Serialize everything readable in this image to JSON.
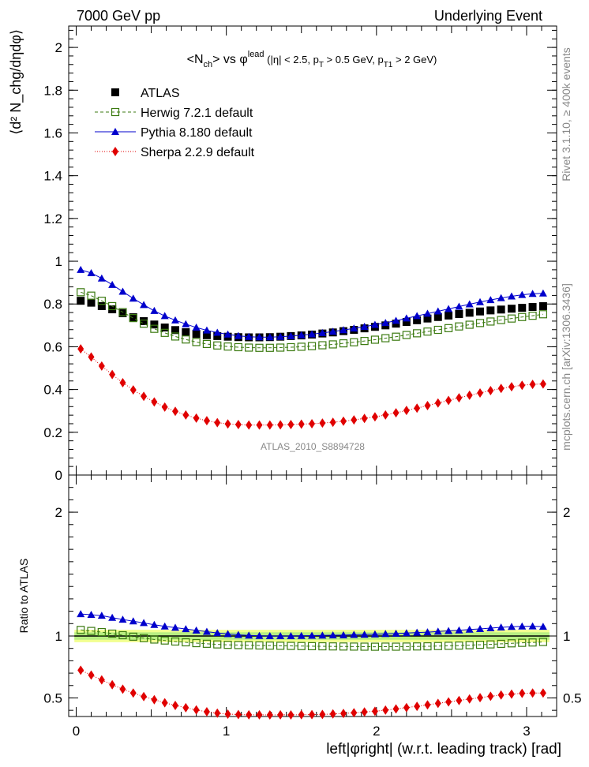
{
  "header": {
    "left": "7000 GeV pp",
    "right": "Underlying Event"
  },
  "side_labels": {
    "rivet": "Rivet 3.1.10, ≥ 400k events",
    "mcplots": "mcplots.cern.ch [arXiv:1306.3436]"
  },
  "watermark": "ATLAS_2010_S8894728",
  "chart_data": [
    {
      "type": "scatter",
      "title": "<N_ch> vs φ^lead (|η| < 2.5, p_T > 0.5 GeV, p_T1 > 2 GeV)",
      "ylabel": "⟨d² N_chg/dηdφ⟩",
      "xlim": [
        -0.05,
        3.2
      ],
      "ylim": [
        0,
        2.1
      ],
      "yticks": [
        "0",
        "0.2",
        "0.4",
        "0.6",
        "0.8",
        "1",
        "1.2",
        "1.4",
        "1.6",
        "1.8",
        "2"
      ],
      "legend_position": "top-left",
      "x": [
        0.03,
        0.1,
        0.17,
        0.24,
        0.31,
        0.38,
        0.45,
        0.52,
        0.59,
        0.66,
        0.73,
        0.8,
        0.87,
        0.94,
        1.01,
        1.08,
        1.15,
        1.22,
        1.29,
        1.36,
        1.43,
        1.5,
        1.57,
        1.64,
        1.71,
        1.78,
        1.85,
        1.92,
        1.99,
        2.06,
        2.13,
        2.2,
        2.27,
        2.34,
        2.41,
        2.48,
        2.55,
        2.62,
        2.69,
        2.76,
        2.83,
        2.9,
        2.97,
        3.04,
        3.11
      ],
      "series": [
        {
          "name": "ATLAS",
          "color": "#000000",
          "marker": "square-filled",
          "values": [
            0.815,
            0.806,
            0.79,
            0.775,
            0.757,
            0.738,
            0.72,
            0.704,
            0.69,
            0.678,
            0.668,
            0.66,
            0.654,
            0.65,
            0.647,
            0.645,
            0.644,
            0.644,
            0.645,
            0.647,
            0.65,
            0.653,
            0.657,
            0.662,
            0.667,
            0.673,
            0.679,
            0.686,
            0.693,
            0.7,
            0.708,
            0.716,
            0.724,
            0.732,
            0.739,
            0.746,
            0.753,
            0.759,
            0.765,
            0.77,
            0.774,
            0.778,
            0.782,
            0.786,
            0.79
          ]
        },
        {
          "name": "Herwig 7.2.1 default",
          "color": "#3b7a10",
          "marker": "square-open",
          "values": [
            0.855,
            0.839,
            0.815,
            0.79,
            0.762,
            0.734,
            0.708,
            0.684,
            0.665,
            0.648,
            0.634,
            0.622,
            0.613,
            0.606,
            0.601,
            0.598,
            0.596,
            0.595,
            0.595,
            0.596,
            0.598,
            0.6,
            0.603,
            0.607,
            0.611,
            0.616,
            0.621,
            0.627,
            0.633,
            0.64,
            0.647,
            0.655,
            0.663,
            0.671,
            0.679,
            0.687,
            0.695,
            0.703,
            0.711,
            0.718,
            0.725,
            0.732,
            0.739,
            0.745,
            0.752
          ]
        },
        {
          "name": "Pythia 8.180 default",
          "color": "#0000cc",
          "marker": "triangle",
          "values": [
            0.96,
            0.945,
            0.92,
            0.89,
            0.858,
            0.826,
            0.796,
            0.768,
            0.744,
            0.724,
            0.706,
            0.69,
            0.677,
            0.666,
            0.658,
            0.651,
            0.647,
            0.645,
            0.645,
            0.647,
            0.65,
            0.654,
            0.659,
            0.665,
            0.671,
            0.678,
            0.686,
            0.694,
            0.703,
            0.712,
            0.722,
            0.733,
            0.744,
            0.755,
            0.766,
            0.777,
            0.788,
            0.799,
            0.809,
            0.819,
            0.828,
            0.836,
            0.843,
            0.848,
            0.85
          ]
        },
        {
          "name": "Sherpa 2.2.9 default",
          "color": "#e00000",
          "marker": "diamond",
          "values": [
            0.59,
            0.552,
            0.51,
            0.47,
            0.432,
            0.398,
            0.368,
            0.342,
            0.318,
            0.298,
            0.281,
            0.266,
            0.254,
            0.245,
            0.239,
            0.236,
            0.234,
            0.234,
            0.234,
            0.235,
            0.236,
            0.238,
            0.24,
            0.243,
            0.247,
            0.252,
            0.258,
            0.265,
            0.272,
            0.281,
            0.291,
            0.302,
            0.313,
            0.325,
            0.337,
            0.349,
            0.361,
            0.373,
            0.384,
            0.395,
            0.405,
            0.413,
            0.42,
            0.424,
            0.426
          ]
        }
      ]
    },
    {
      "type": "scatter",
      "ylabel": "Ratio to ATLAS",
      "xlabel": "left|φright| (w.r.t. leading track) [rad]",
      "xlim": [
        -0.05,
        3.2
      ],
      "ylim": [
        0.35,
        2.3
      ],
      "xticks": [
        "0",
        "1",
        "2",
        "3"
      ],
      "yticks": [
        "0.5",
        "1",
        "2"
      ],
      "band": {
        "inner": [
          0.97,
          1.03
        ],
        "outer": [
          0.95,
          1.05
        ],
        "inner_color": "#b7ee82",
        "outer_color": "#f1ff8f"
      }
    }
  ]
}
